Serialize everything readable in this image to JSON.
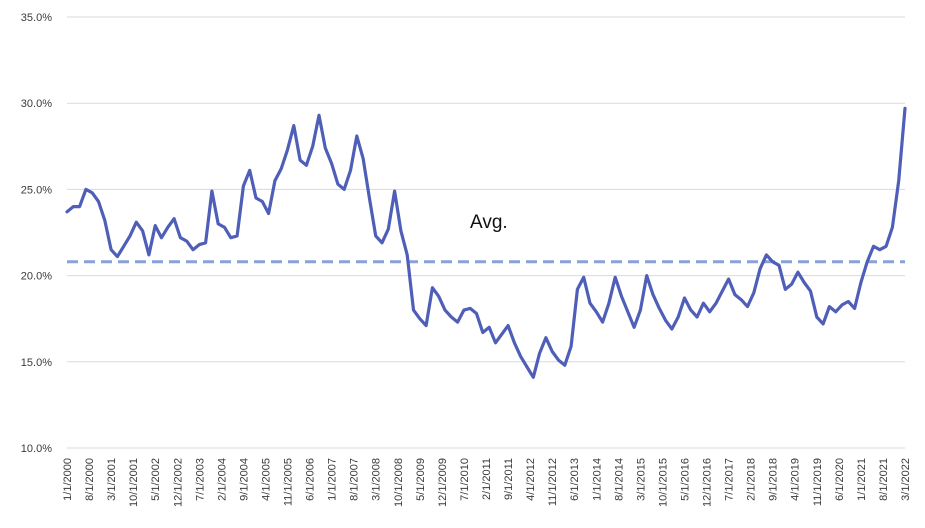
{
  "chart_data": {
    "type": "line",
    "title": "",
    "xlabel": "",
    "ylabel": "",
    "ylim": [
      10,
      35
    ],
    "y_ticks": [
      "10.0%",
      "15.0%",
      "20.0%",
      "25.0%",
      "30.0%",
      "35.0%"
    ],
    "y_tick_values": [
      10,
      15,
      20,
      25,
      30,
      35
    ],
    "grid": "horizontal",
    "legend": "none",
    "x_range": [
      "1/1/2000",
      "3/1/2022"
    ],
    "x_ticks": [
      "1/1/2000",
      "8/1/2000",
      "3/1/2001",
      "10/1/2001",
      "5/1/2002",
      "12/1/2002",
      "7/1/2003",
      "2/1/2004",
      "9/1/2004",
      "4/1/2005",
      "11/1/2005",
      "6/1/2006",
      "1/1/2007",
      "8/1/2007",
      "3/1/2008",
      "10/1/2008",
      "5/1/2009",
      "12/1/2009",
      "7/1/2010",
      "2/1/2011",
      "9/1/2011",
      "4/1/2012",
      "11/1/2012",
      "6/1/2013",
      "1/1/2014",
      "8/1/2014",
      "3/1/2015",
      "10/1/2015",
      "5/1/2016",
      "12/1/2016",
      "7/1/2017",
      "2/1/2018",
      "9/1/2018",
      "4/1/2019",
      "11/1/2019",
      "6/1/2020",
      "1/1/2021",
      "8/1/2021",
      "3/1/2022"
    ],
    "average": {
      "label": "Avg.",
      "value": 20.8
    },
    "colors": {
      "line": "#4f5fb8",
      "average": "#8aa0d8",
      "grid": "#d9d9d9"
    },
    "series": [
      {
        "points": [
          [
            "1/1/2000",
            23.7
          ],
          [
            "3/1/2000",
            24.0
          ],
          [
            "5/1/2000",
            24.0
          ],
          [
            "7/1/2000",
            25.0
          ],
          [
            "9/1/2000",
            24.8
          ],
          [
            "11/1/2000",
            24.3
          ],
          [
            "1/1/2001",
            23.2
          ],
          [
            "3/1/2001",
            21.5
          ],
          [
            "5/1/2001",
            21.1
          ],
          [
            "7/1/2001",
            21.7
          ],
          [
            "9/1/2001",
            22.3
          ],
          [
            "11/1/2001",
            23.1
          ],
          [
            "1/1/2002",
            22.6
          ],
          [
            "3/1/2002",
            21.2
          ],
          [
            "5/1/2002",
            22.9
          ],
          [
            "7/1/2002",
            22.2
          ],
          [
            "9/1/2002",
            22.8
          ],
          [
            "11/1/2002",
            23.3
          ],
          [
            "1/1/2003",
            22.2
          ],
          [
            "3/1/2003",
            22.0
          ],
          [
            "5/1/2003",
            21.5
          ],
          [
            "7/1/2003",
            21.8
          ],
          [
            "9/1/2003",
            21.9
          ],
          [
            "11/1/2003",
            24.9
          ],
          [
            "1/1/2004",
            23.0
          ],
          [
            "3/1/2004",
            22.8
          ],
          [
            "5/1/2004",
            22.2
          ],
          [
            "7/1/2004",
            22.3
          ],
          [
            "9/1/2004",
            25.2
          ],
          [
            "11/1/2004",
            26.1
          ],
          [
            "1/1/2005",
            24.5
          ],
          [
            "3/1/2005",
            24.3
          ],
          [
            "5/1/2005",
            23.6
          ],
          [
            "7/1/2005",
            25.5
          ],
          [
            "9/1/2005",
            26.2
          ],
          [
            "11/1/2005",
            27.3
          ],
          [
            "1/1/2006",
            28.7
          ],
          [
            "3/1/2006",
            26.7
          ],
          [
            "5/1/2006",
            26.4
          ],
          [
            "7/1/2006",
            27.5
          ],
          [
            "9/1/2006",
            29.3
          ],
          [
            "11/1/2006",
            27.4
          ],
          [
            "1/1/2007",
            26.5
          ],
          [
            "3/1/2007",
            25.3
          ],
          [
            "5/1/2007",
            25.0
          ],
          [
            "7/1/2007",
            26.1
          ],
          [
            "9/1/2007",
            28.1
          ],
          [
            "11/1/2007",
            26.8
          ],
          [
            "1/1/2008",
            24.5
          ],
          [
            "3/1/2008",
            22.3
          ],
          [
            "5/1/2008",
            21.9
          ],
          [
            "7/1/2008",
            22.7
          ],
          [
            "9/1/2008",
            24.9
          ],
          [
            "11/1/2008",
            22.6
          ],
          [
            "1/1/2009",
            21.2
          ],
          [
            "3/1/2009",
            18.0
          ],
          [
            "5/1/2009",
            17.5
          ],
          [
            "7/1/2009",
            17.1
          ],
          [
            "9/1/2009",
            19.3
          ],
          [
            "11/1/2009",
            18.8
          ],
          [
            "1/1/2010",
            18.0
          ],
          [
            "3/1/2010",
            17.6
          ],
          [
            "5/1/2010",
            17.3
          ],
          [
            "7/1/2010",
            18.0
          ],
          [
            "9/1/2010",
            18.1
          ],
          [
            "11/1/2010",
            17.8
          ],
          [
            "1/1/2011",
            16.7
          ],
          [
            "3/1/2011",
            17.0
          ],
          [
            "5/1/2011",
            16.1
          ],
          [
            "7/1/2011",
            16.6
          ],
          [
            "9/1/2011",
            17.1
          ],
          [
            "11/1/2011",
            16.1
          ],
          [
            "1/1/2012",
            15.3
          ],
          [
            "3/1/2012",
            14.7
          ],
          [
            "5/1/2012",
            14.1
          ],
          [
            "7/1/2012",
            15.5
          ],
          [
            "9/1/2012",
            16.4
          ],
          [
            "11/1/2012",
            15.6
          ],
          [
            "1/1/2013",
            15.1
          ],
          [
            "3/1/2013",
            14.8
          ],
          [
            "5/1/2013",
            15.9
          ],
          [
            "7/1/2013",
            19.2
          ],
          [
            "9/1/2013",
            19.9
          ],
          [
            "11/1/2013",
            18.4
          ],
          [
            "1/1/2014",
            17.9
          ],
          [
            "3/1/2014",
            17.3
          ],
          [
            "5/1/2014",
            18.4
          ],
          [
            "7/1/2014",
            19.9
          ],
          [
            "9/1/2014",
            18.8
          ],
          [
            "11/1/2014",
            17.9
          ],
          [
            "1/1/2015",
            17.0
          ],
          [
            "3/1/2015",
            18.0
          ],
          [
            "5/1/2015",
            20.0
          ],
          [
            "7/1/2015",
            18.9
          ],
          [
            "9/1/2015",
            18.1
          ],
          [
            "11/1/2015",
            17.4
          ],
          [
            "1/1/2016",
            16.9
          ],
          [
            "3/1/2016",
            17.6
          ],
          [
            "5/1/2016",
            18.7
          ],
          [
            "7/1/2016",
            18.0
          ],
          [
            "9/1/2016",
            17.6
          ],
          [
            "11/1/2016",
            18.4
          ],
          [
            "1/1/2017",
            17.9
          ],
          [
            "3/1/2017",
            18.4
          ],
          [
            "5/1/2017",
            19.1
          ],
          [
            "7/1/2017",
            19.8
          ],
          [
            "9/1/2017",
            18.9
          ],
          [
            "11/1/2017",
            18.6
          ],
          [
            "1/1/2018",
            18.2
          ],
          [
            "3/1/2018",
            19.0
          ],
          [
            "5/1/2018",
            20.4
          ],
          [
            "7/1/2018",
            21.2
          ],
          [
            "9/1/2018",
            20.8
          ],
          [
            "11/1/2018",
            20.6
          ],
          [
            "1/1/2019",
            19.2
          ],
          [
            "3/1/2019",
            19.5
          ],
          [
            "5/1/2019",
            20.2
          ],
          [
            "7/1/2019",
            19.6
          ],
          [
            "9/1/2019",
            19.1
          ],
          [
            "11/1/2019",
            17.6
          ],
          [
            "1/1/2020",
            17.2
          ],
          [
            "3/1/2020",
            18.2
          ],
          [
            "5/1/2020",
            17.9
          ],
          [
            "7/1/2020",
            18.3
          ],
          [
            "9/1/2020",
            18.5
          ],
          [
            "11/1/2020",
            18.1
          ],
          [
            "1/1/2021",
            19.6
          ],
          [
            "3/1/2021",
            20.8
          ],
          [
            "5/1/2021",
            21.7
          ],
          [
            "7/1/2021",
            21.5
          ],
          [
            "9/1/2021",
            21.7
          ],
          [
            "11/1/2021",
            22.8
          ],
          [
            "1/1/2022",
            25.5
          ],
          [
            "3/1/2022",
            29.7
          ]
        ]
      }
    ]
  }
}
